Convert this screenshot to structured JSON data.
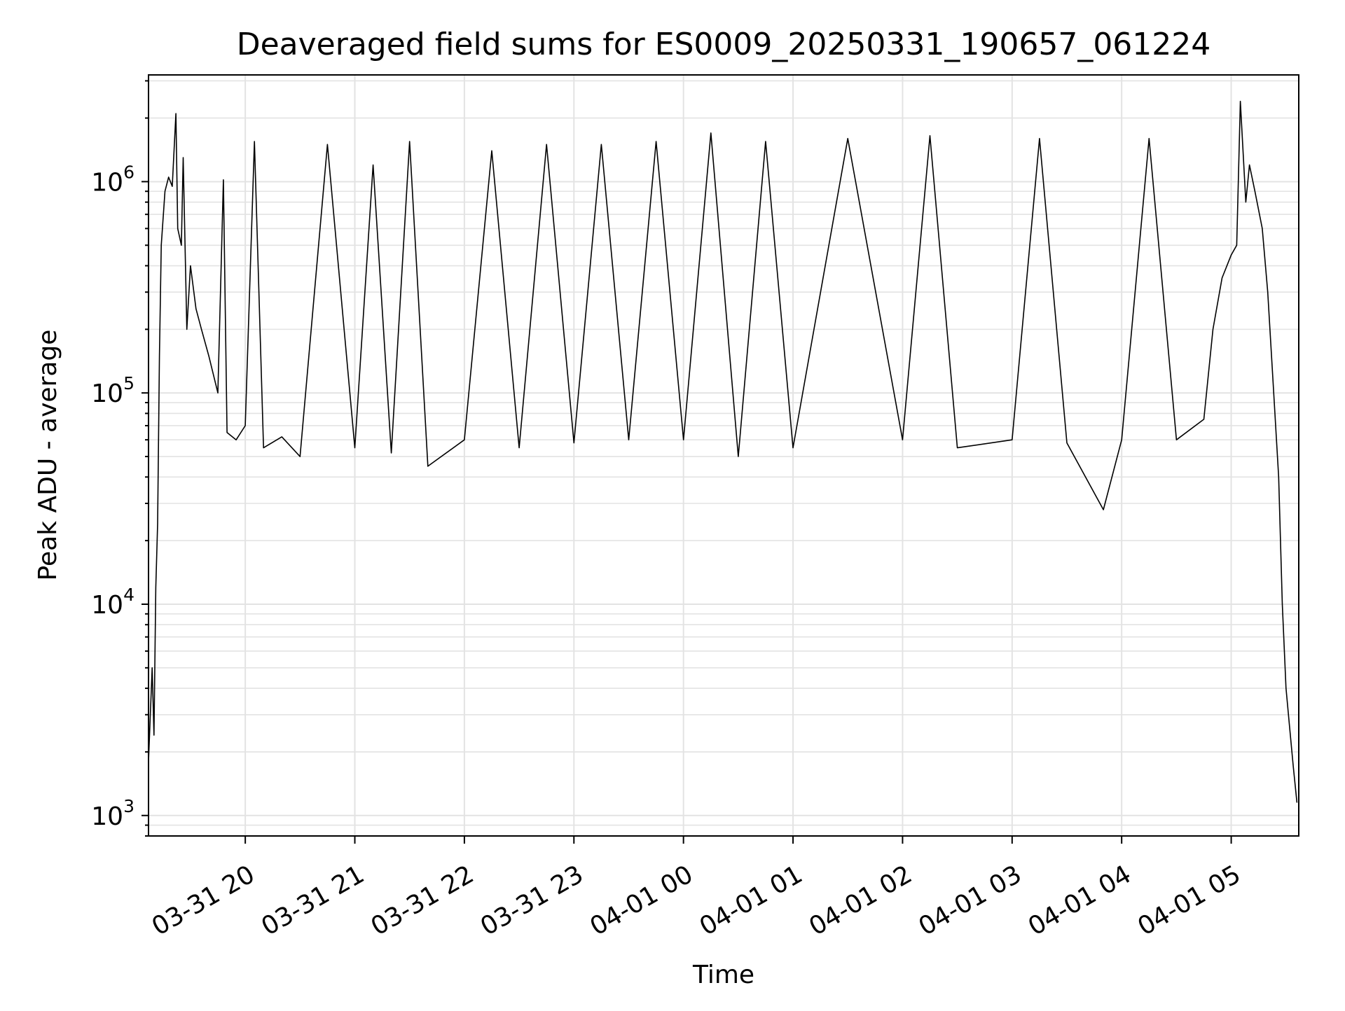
{
  "chart_data": {
    "type": "line",
    "title": "Deaveraged field sums for ES0009_20250331_190657_061224",
    "xlabel": "Time",
    "ylabel": "Peak ADU - average",
    "yscale": "log",
    "ylim": [
      800,
      3200000
    ],
    "xlim": [
      "2025-03-31 19:07",
      "2025-04-01 05:37"
    ],
    "grid": true,
    "x_ticks": [
      {
        "t": "2025-03-31 20:00",
        "label": "03-31 20"
      },
      {
        "t": "2025-03-31 21:00",
        "label": "03-31 21"
      },
      {
        "t": "2025-03-31 22:00",
        "label": "03-31 22"
      },
      {
        "t": "2025-03-31 23:00",
        "label": "03-31 23"
      },
      {
        "t": "2025-04-01 00:00",
        "label": "04-01 00"
      },
      {
        "t": "2025-04-01 01:00",
        "label": "04-01 01"
      },
      {
        "t": "2025-04-01 02:00",
        "label": "04-01 02"
      },
      {
        "t": "2025-04-01 03:00",
        "label": "04-01 03"
      },
      {
        "t": "2025-04-01 04:00",
        "label": "04-01 04"
      },
      {
        "t": "2025-04-01 05:00",
        "label": "04-01 05"
      }
    ],
    "y_ticks": [
      {
        "value": 1000,
        "base": "10",
        "exp": "3"
      },
      {
        "value": 10000,
        "base": "10",
        "exp": "4"
      },
      {
        "value": 100000,
        "base": "10",
        "exp": "5"
      },
      {
        "value": 1000000,
        "base": "10",
        "exp": "6"
      }
    ],
    "series": [
      {
        "color": "#000000",
        "points": [
          [
            "2025-03-31 19:07",
            1800
          ],
          [
            "2025-03-31 19:08",
            3000
          ],
          [
            "2025-03-31 19:09",
            5000
          ],
          [
            "2025-03-31 19:10",
            2400
          ],
          [
            "2025-03-31 19:11",
            12000
          ],
          [
            "2025-03-31 19:12",
            24000
          ],
          [
            "2025-03-31 19:13",
            150000
          ],
          [
            "2025-03-31 19:14",
            500000
          ],
          [
            "2025-03-31 19:16",
            900000
          ],
          [
            "2025-03-31 19:18",
            1050000
          ],
          [
            "2025-03-31 19:20",
            950000
          ],
          [
            "2025-03-31 19:22",
            2100000
          ],
          [
            "2025-03-31 19:23",
            600000
          ],
          [
            "2025-03-31 19:25",
            500000
          ],
          [
            "2025-03-31 19:26",
            1300000
          ],
          [
            "2025-03-31 19:28",
            200000
          ],
          [
            "2025-03-31 19:30",
            400000
          ],
          [
            "2025-03-31 19:33",
            250000
          ],
          [
            "2025-03-31 19:36",
            200000
          ],
          [
            "2025-03-31 19:40",
            150000
          ],
          [
            "2025-03-31 19:45",
            100000
          ],
          [
            "2025-03-31 19:48",
            1020000
          ],
          [
            "2025-03-31 19:50",
            65000
          ],
          [
            "2025-03-31 19:55",
            60000
          ],
          [
            "2025-03-31 20:00",
            70000
          ],
          [
            "2025-03-31 20:05",
            1550000
          ],
          [
            "2025-03-31 20:10",
            55000
          ],
          [
            "2025-03-31 20:20",
            62000
          ],
          [
            "2025-03-31 20:30",
            50000
          ],
          [
            "2025-03-31 20:45",
            1500000
          ],
          [
            "2025-03-31 21:00",
            55000
          ],
          [
            "2025-03-31 21:10",
            1200000
          ],
          [
            "2025-03-31 21:20",
            52000
          ],
          [
            "2025-03-31 21:30",
            1550000
          ],
          [
            "2025-03-31 21:40",
            45000
          ],
          [
            "2025-03-31 22:00",
            60000
          ],
          [
            "2025-03-31 22:15",
            1400000
          ],
          [
            "2025-03-31 22:30",
            55000
          ],
          [
            "2025-03-31 22:45",
            1500000
          ],
          [
            "2025-03-31 23:00",
            58000
          ],
          [
            "2025-03-31 23:15",
            1500000
          ],
          [
            "2025-03-31 23:30",
            60000
          ],
          [
            "2025-03-31 23:45",
            1550000
          ],
          [
            "2025-04-01 00:00",
            60000
          ],
          [
            "2025-04-01 00:15",
            1700000
          ],
          [
            "2025-04-01 00:30",
            50000
          ],
          [
            "2025-04-01 00:45",
            1550000
          ],
          [
            "2025-04-01 01:00",
            55000
          ],
          [
            "2025-04-01 01:30",
            1600000
          ],
          [
            "2025-04-01 02:00",
            60000
          ],
          [
            "2025-04-01 02:15",
            1650000
          ],
          [
            "2025-04-01 02:30",
            55000
          ],
          [
            "2025-04-01 03:00",
            60000
          ],
          [
            "2025-04-01 03:15",
            1600000
          ],
          [
            "2025-04-01 03:30",
            58000
          ],
          [
            "2025-04-01 03:50",
            28000
          ],
          [
            "2025-04-01 04:00",
            60000
          ],
          [
            "2025-04-01 04:15",
            1600000
          ],
          [
            "2025-04-01 04:30",
            60000
          ],
          [
            "2025-04-01 04:45",
            75000
          ],
          [
            "2025-04-01 04:50",
            200000
          ],
          [
            "2025-04-01 04:55",
            350000
          ],
          [
            "2025-04-01 05:00",
            450000
          ],
          [
            "2025-04-01 05:03",
            500000
          ],
          [
            "2025-04-01 05:05",
            2400000
          ],
          [
            "2025-04-01 05:08",
            800000
          ],
          [
            "2025-04-01 05:10",
            1200000
          ],
          [
            "2025-04-01 05:13",
            900000
          ],
          [
            "2025-04-01 05:17",
            600000
          ],
          [
            "2025-04-01 05:20",
            300000
          ],
          [
            "2025-04-01 05:23",
            110000
          ],
          [
            "2025-04-01 05:26",
            40000
          ],
          [
            "2025-04-01 05:28",
            10000
          ],
          [
            "2025-04-01 05:30",
            4000
          ],
          [
            "2025-04-01 05:32",
            2600
          ],
          [
            "2025-04-01 05:34",
            1700
          ],
          [
            "2025-04-01 05:36",
            1150
          ]
        ]
      }
    ]
  }
}
